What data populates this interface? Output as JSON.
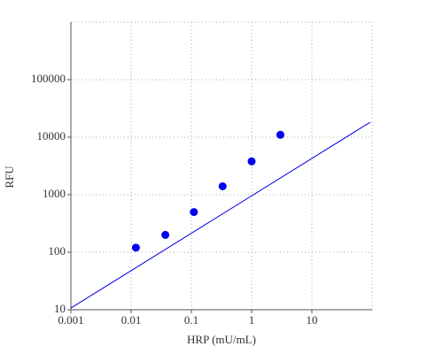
{
  "chart_data": {
    "type": "scatter",
    "x_label": "HRP (mU/mL)",
    "y_label": "RFU",
    "x_log": true,
    "y_log": true,
    "grid": true,
    "xlim": [
      0.001,
      100
    ],
    "ylim": [
      10,
      1000000
    ],
    "xticks": [
      0.001,
      0.01,
      0.1,
      1,
      10
    ],
    "yticks": [
      10,
      100,
      1000,
      10000,
      100000
    ],
    "points": {
      "color": "#0000ee",
      "x": [
        0.012,
        0.037,
        0.11,
        0.33,
        1,
        3
      ],
      "y": [
        120,
        200,
        500,
        1400,
        3800,
        11000
      ]
    },
    "fit": {
      "color": "#0000ee",
      "x": [
        0.001,
        93
      ],
      "y": [
        10.7,
        18200
      ]
    }
  }
}
